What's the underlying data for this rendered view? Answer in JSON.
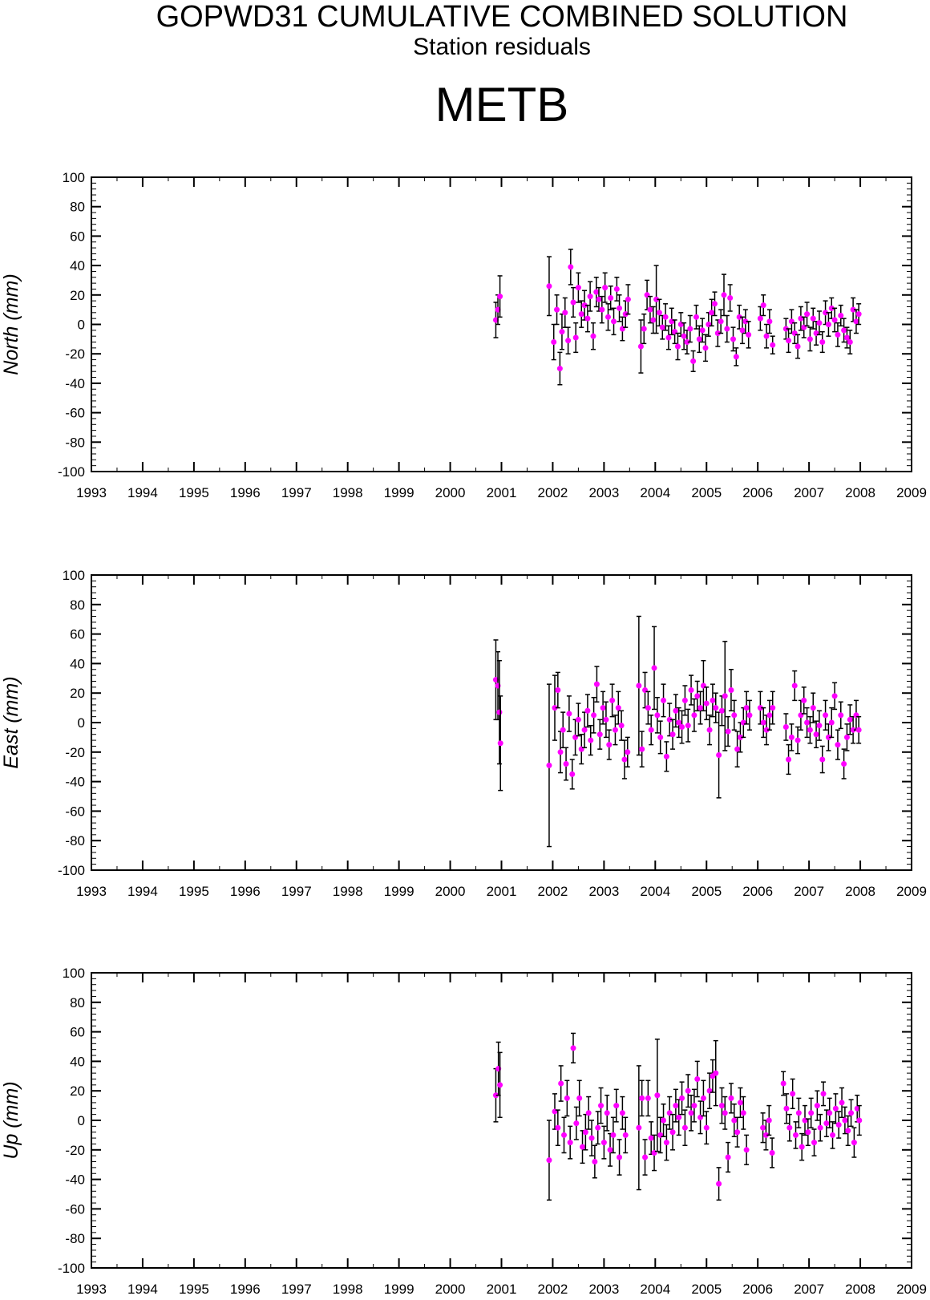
{
  "title": "GOPWD31 CUMULATIVE COMBINED SOLUTION",
  "subtitle": "Station residuals",
  "station": "METB",
  "colors": {
    "point": "#ff00ff",
    "errorbar": "#000000",
    "axis": "#000000"
  },
  "chart_data": [
    {
      "type": "scatter",
      "ylabel": "North (mm)",
      "xlim": [
        1993,
        2009
      ],
      "ylim": [
        -100,
        100
      ],
      "xticks": [
        1993,
        1994,
        1995,
        1996,
        1997,
        1998,
        1999,
        2000,
        2001,
        2002,
        2003,
        2004,
        2005,
        2006,
        2007,
        2008,
        2009
      ],
      "yticks": [
        -100,
        -80,
        -60,
        -40,
        -20,
        0,
        20,
        40,
        60,
        80,
        100
      ],
      "grid": false,
      "series": [
        {
          "x": [
            2000.89,
            2000.93,
            2000.97,
            2001.93,
            2002.02,
            2002.08,
            2002.14,
            2002.18,
            2002.24,
            2002.3,
            2002.35,
            2002.4,
            2002.45,
            2002.5,
            2002.56,
            2002.62,
            2002.68,
            2002.73,
            2002.79,
            2002.85,
            2002.9,
            2002.96,
            2003.02,
            2003.08,
            2003.13,
            2003.19,
            2003.25,
            2003.3,
            2003.36,
            2003.42,
            2003.47,
            2003.72,
            2003.78,
            2003.84,
            2003.9,
            2003.96,
            2004.02,
            2004.08,
            2004.14,
            2004.2,
            2004.26,
            2004.32,
            2004.38,
            2004.44,
            2004.5,
            2004.56,
            2004.62,
            2004.68,
            2004.74,
            2004.8,
            2004.86,
            2004.92,
            2004.98,
            2005.04,
            2005.1,
            2005.16,
            2005.22,
            2005.28,
            2005.34,
            2005.4,
            2005.46,
            2005.52,
            2005.58,
            2005.64,
            2005.7,
            2005.76,
            2005.82,
            2006.05,
            2006.11,
            2006.17,
            2006.23,
            2006.29,
            2006.55,
            2006.6,
            2006.66,
            2006.72,
            2006.78,
            2006.84,
            2006.9,
            2006.96,
            2007.02,
            2007.08,
            2007.14,
            2007.2,
            2007.26,
            2007.32,
            2007.38,
            2007.44,
            2007.5,
            2007.56,
            2007.62,
            2007.68,
            2007.74,
            2007.8,
            2007.86,
            2007.92,
            2007.97
          ],
          "y": [
            3,
            10,
            19,
            26,
            -12,
            10,
            -30,
            -5,
            8,
            -11,
            39,
            15,
            -9,
            25,
            7,
            13,
            4,
            19,
            -8,
            22,
            17,
            10,
            25,
            5,
            18,
            2,
            24,
            11,
            -3,
            7,
            17,
            -15,
            -3,
            20,
            10,
            3,
            17,
            8,
            -2,
            5,
            -9,
            2,
            -5,
            -15,
            0,
            -8,
            -12,
            -3,
            -25,
            5,
            -10,
            -4,
            -16,
            0,
            8,
            14,
            -6,
            2,
            20,
            -3,
            18,
            -10,
            -22,
            5,
            -4,
            2,
            -7,
            4,
            13,
            -8,
            2,
            -14,
            -3,
            -11,
            2,
            -6,
            -15,
            4,
            -2,
            7,
            -10,
            4,
            -6,
            1,
            -12,
            8,
            0,
            11,
            3,
            -7,
            6,
            -4,
            -9,
            -12,
            10,
            2,
            7
          ],
          "err": [
            12,
            10,
            14,
            20,
            12,
            10,
            11,
            12,
            10,
            9,
            12,
            10,
            10,
            10,
            9,
            10,
            9,
            10,
            9,
            10,
            8,
            9,
            10,
            9,
            8,
            9,
            8,
            9,
            8,
            9,
            10,
            18,
            10,
            10,
            9,
            9,
            23,
            9,
            8,
            9,
            8,
            9,
            8,
            9,
            8,
            9,
            8,
            9,
            7,
            8,
            9,
            8,
            9,
            8,
            9,
            8,
            9,
            8,
            14,
            9,
            9,
            8,
            6,
            8,
            9,
            8,
            9,
            8,
            7,
            8,
            8,
            6,
            7,
            8,
            8,
            7,
            8,
            8,
            7,
            8,
            8,
            7,
            8,
            8,
            7,
            8,
            8,
            7,
            8,
            8,
            7,
            8,
            7,
            8,
            8,
            8,
            7
          ]
        }
      ]
    },
    {
      "type": "scatter",
      "ylabel": "East (mm)",
      "xlim": [
        1993,
        2009
      ],
      "ylim": [
        -100,
        100
      ],
      "xticks": [
        1993,
        1994,
        1995,
        1996,
        1997,
        1998,
        1999,
        2000,
        2001,
        2002,
        2003,
        2004,
        2005,
        2006,
        2007,
        2008,
        2009
      ],
      "yticks": [
        -100,
        -80,
        -60,
        -40,
        -20,
        0,
        20,
        40,
        60,
        80,
        100
      ],
      "grid": false,
      "series": [
        {
          "x": [
            2000.89,
            2000.93,
            2000.96,
            2000.98,
            2001.93,
            2002.04,
            2002.1,
            2002.15,
            2002.2,
            2002.26,
            2002.32,
            2002.38,
            2002.44,
            2002.5,
            2002.56,
            2002.62,
            2002.68,
            2002.74,
            2002.8,
            2002.86,
            2002.92,
            2002.98,
            2003.04,
            2003.1,
            2003.16,
            2003.22,
            2003.28,
            2003.34,
            2003.4,
            2003.46,
            2003.68,
            2003.74,
            2003.8,
            2003.86,
            2003.92,
            2003.98,
            2004.04,
            2004.1,
            2004.16,
            2004.22,
            2004.28,
            2004.34,
            2004.4,
            2004.46,
            2004.52,
            2004.58,
            2004.64,
            2004.7,
            2004.76,
            2004.82,
            2004.88,
            2004.94,
            2005.0,
            2005.06,
            2005.12,
            2005.18,
            2005.24,
            2005.3,
            2005.36,
            2005.42,
            2005.48,
            2005.54,
            2005.6,
            2005.66,
            2005.72,
            2005.78,
            2005.84,
            2006.05,
            2006.11,
            2006.17,
            2006.23,
            2006.29,
            2006.55,
            2006.6,
            2006.66,
            2006.72,
            2006.78,
            2006.84,
            2006.9,
            2006.96,
            2007.02,
            2007.08,
            2007.14,
            2007.2,
            2007.26,
            2007.32,
            2007.38,
            2007.44,
            2007.5,
            2007.56,
            2007.62,
            2007.68,
            2007.74,
            2007.8,
            2007.86,
            2007.92,
            2007.97
          ],
          "y": [
            29,
            25,
            7,
            -14,
            -29,
            10,
            22,
            -20,
            -5,
            -28,
            6,
            -35,
            -10,
            2,
            -18,
            -5,
            8,
            -12,
            5,
            26,
            -8,
            10,
            2,
            -15,
            15,
            -5,
            10,
            -2,
            -25,
            -20,
            25,
            -18,
            22,
            10,
            -5,
            37,
            5,
            -10,
            15,
            -23,
            2,
            -8,
            8,
            0,
            -3,
            15,
            -2,
            22,
            5,
            18,
            10,
            25,
            13,
            -5,
            15,
            10,
            -22,
            8,
            18,
            -6,
            22,
            5,
            -18,
            -10,
            0,
            10,
            5,
            10,
            0,
            -5,
            5,
            10,
            -3,
            -25,
            -10,
            25,
            -12,
            5,
            15,
            0,
            -5,
            10,
            -8,
            -2,
            -25,
            5,
            -10,
            0,
            18,
            -15,
            5,
            -28,
            -10,
            2,
            -5,
            5,
            -5
          ],
          "err": [
            27,
            23,
            35,
            32,
            55,
            22,
            12,
            14,
            12,
            11,
            12,
            10,
            12,
            11,
            10,
            12,
            11,
            10,
            12,
            12,
            10,
            11,
            12,
            10,
            11,
            10,
            11,
            10,
            13,
            10,
            47,
            12,
            12,
            11,
            10,
            28,
            12,
            11,
            11,
            10,
            11,
            10,
            11,
            10,
            11,
            10,
            11,
            10,
            11,
            10,
            11,
            17,
            11,
            10,
            11,
            10,
            29,
            10,
            37,
            10,
            14,
            10,
            12,
            10,
            10,
            11,
            10,
            11,
            10,
            10,
            10,
            11,
            9,
            10,
            9,
            10,
            9,
            10,
            9,
            10,
            9,
            10,
            9,
            10,
            9,
            10,
            9,
            10,
            9,
            10,
            9,
            10,
            9,
            10,
            9,
            10,
            9
          ]
        }
      ]
    },
    {
      "type": "scatter",
      "ylabel": "Up (mm)",
      "xlim": [
        1993,
        2009
      ],
      "ylim": [
        -100,
        100
      ],
      "xticks": [
        1993,
        1994,
        1995,
        1996,
        1997,
        1998,
        1999,
        2000,
        2001,
        2002,
        2003,
        2004,
        2005,
        2006,
        2007,
        2008,
        2009
      ],
      "yticks": [
        -100,
        -80,
        -60,
        -40,
        -20,
        0,
        20,
        40,
        60,
        80,
        100
      ],
      "grid": false,
      "series": [
        {
          "x": [
            2000.89,
            2000.94,
            2000.97,
            2001.93,
            2002.04,
            2002.1,
            2002.16,
            2002.22,
            2002.28,
            2002.34,
            2002.4,
            2002.46,
            2002.52,
            2002.58,
            2002.64,
            2002.7,
            2002.76,
            2002.82,
            2002.88,
            2002.94,
            2003.0,
            2003.06,
            2003.12,
            2003.18,
            2003.24,
            2003.3,
            2003.36,
            2003.42,
            2003.68,
            2003.74,
            2003.8,
            2003.86,
            2003.92,
            2003.98,
            2004.04,
            2004.1,
            2004.16,
            2004.22,
            2004.28,
            2004.34,
            2004.4,
            2004.46,
            2004.52,
            2004.58,
            2004.64,
            2004.7,
            2004.76,
            2004.82,
            2004.88,
            2004.94,
            2005.0,
            2005.06,
            2005.12,
            2005.18,
            2005.24,
            2005.3,
            2005.36,
            2005.42,
            2005.48,
            2005.54,
            2005.6,
            2005.66,
            2005.72,
            2005.78,
            2006.1,
            2006.16,
            2006.22,
            2006.28,
            2006.5,
            2006.56,
            2006.62,
            2006.68,
            2006.74,
            2006.8,
            2006.86,
            2006.92,
            2006.98,
            2007.04,
            2007.1,
            2007.16,
            2007.22,
            2007.28,
            2007.34,
            2007.4,
            2007.46,
            2007.52,
            2007.58,
            2007.64,
            2007.7,
            2007.76,
            2007.82,
            2007.88,
            2007.94,
            2007.98
          ],
          "y": [
            17,
            35,
            24,
            -27,
            6,
            -5,
            25,
            -10,
            15,
            -15,
            49,
            -2,
            15,
            -18,
            -8,
            5,
            -12,
            -28,
            -5,
            10,
            -15,
            5,
            -20,
            -10,
            10,
            -25,
            5,
            -10,
            -5,
            15,
            -25,
            15,
            -12,
            -22,
            17,
            -10,
            0,
            -15,
            5,
            -8,
            10,
            2,
            15,
            -5,
            20,
            5,
            10,
            28,
            2,
            15,
            -5,
            20,
            30,
            32,
            -43,
            10,
            5,
            -25,
            15,
            0,
            -8,
            12,
            5,
            -20,
            -5,
            -10,
            0,
            -22,
            25,
            8,
            -5,
            18,
            -10,
            5,
            -18,
            0,
            -8,
            5,
            -15,
            10,
            -5,
            18,
            -2,
            5,
            -10,
            8,
            -3,
            12,
            0,
            -7,
            5,
            -15,
            8,
            0
          ],
          "err": [
            18,
            18,
            22,
            27,
            12,
            12,
            12,
            12,
            12,
            11,
            10,
            11,
            12,
            11,
            12,
            11,
            12,
            11,
            11,
            12,
            11,
            12,
            11,
            12,
            11,
            12,
            11,
            12,
            42,
            12,
            12,
            12,
            11,
            12,
            38,
            12,
            11,
            12,
            11,
            12,
            11,
            12,
            11,
            12,
            11,
            12,
            11,
            12,
            11,
            12,
            11,
            12,
            11,
            22,
            11,
            12,
            11,
            10,
            10,
            11,
            10,
            10,
            11,
            10,
            10,
            10,
            10,
            10,
            8,
            10,
            9,
            10,
            9,
            10,
            9,
            10,
            9,
            10,
            9,
            10,
            9,
            8,
            9,
            10,
            9,
            10,
            9,
            10,
            9,
            10,
            9,
            10,
            9,
            10
          ]
        }
      ]
    }
  ]
}
